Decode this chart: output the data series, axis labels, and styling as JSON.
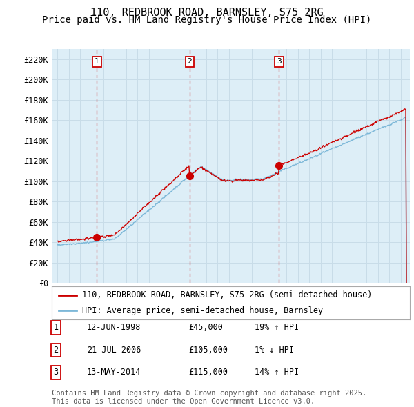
{
  "title": "110, REDBROOK ROAD, BARNSLEY, S75 2RG",
  "subtitle": "Price paid vs. HM Land Registry's House Price Index (HPI)",
  "ylim": [
    0,
    230000
  ],
  "yticks": [
    0,
    20000,
    40000,
    60000,
    80000,
    100000,
    120000,
    140000,
    160000,
    180000,
    200000,
    220000
  ],
  "ytick_labels": [
    "£0",
    "£20K",
    "£40K",
    "£60K",
    "£80K",
    "£100K",
    "£120K",
    "£140K",
    "£160K",
    "£180K",
    "£200K",
    "£220K"
  ],
  "sale_color": "#cc0000",
  "hpi_color": "#7db8d8",
  "chart_bg": "#ddeef7",
  "sale_dates": [
    1998.45,
    2006.55,
    2014.37
  ],
  "sale_prices": [
    45000,
    105000,
    115000
  ],
  "sale_labels": [
    "1",
    "2",
    "3"
  ],
  "transaction_info": [
    {
      "num": "1",
      "date": "12-JUN-1998",
      "price": "£45,000",
      "hpi": "19% ↑ HPI"
    },
    {
      "num": "2",
      "date": "21-JUL-2006",
      "price": "£105,000",
      "hpi": "1% ↓ HPI"
    },
    {
      "num": "3",
      "date": "13-MAY-2014",
      "price": "£115,000",
      "hpi": "14% ↑ HPI"
    }
  ],
  "legend_property": "110, REDBROOK ROAD, BARNSLEY, S75 2RG (semi-detached house)",
  "legend_hpi": "HPI: Average price, semi-detached house, Barnsley",
  "footer": "Contains HM Land Registry data © Crown copyright and database right 2025.\nThis data is licensed under the Open Government Licence v3.0.",
  "background_color": "#ffffff",
  "grid_color": "#c8dce8",
  "vline_color": "#cc0000",
  "title_fontsize": 11,
  "subtitle_fontsize": 10,
  "tick_fontsize": 8.5,
  "legend_fontsize": 8.5,
  "footer_fontsize": 7.5,
  "xlim_left": 1994.5,
  "xlim_right": 2025.8
}
